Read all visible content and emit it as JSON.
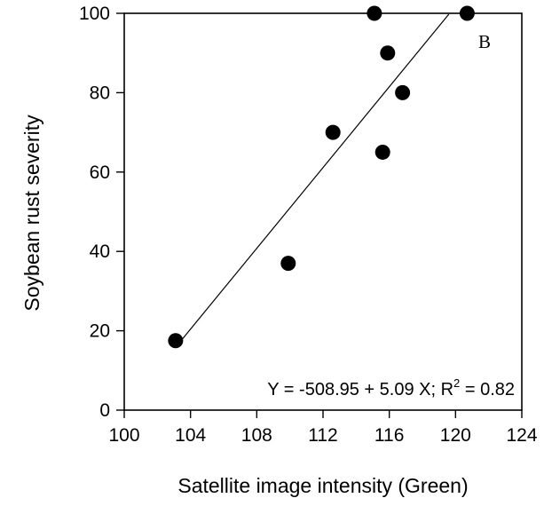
{
  "chart_data": {
    "type": "scatter",
    "panel_label": "B",
    "xlabel": "Satellite image intensity (Green)",
    "ylabel": "Soybean rust severity",
    "xlim": [
      100,
      124
    ],
    "ylim": [
      0,
      100
    ],
    "x_ticks": [
      100,
      104,
      108,
      112,
      116,
      120,
      124
    ],
    "y_ticks": [
      0,
      20,
      40,
      60,
      80,
      100
    ],
    "grid": false,
    "points": [
      {
        "x": 103.1,
        "y": 17.5
      },
      {
        "x": 109.9,
        "y": 37
      },
      {
        "x": 112.6,
        "y": 70
      },
      {
        "x": 115.1,
        "y": 100
      },
      {
        "x": 115.6,
        "y": 65
      },
      {
        "x": 115.9,
        "y": 90
      },
      {
        "x": 116.8,
        "y": 80
      },
      {
        "x": 120.7,
        "y": 100
      }
    ],
    "regression": {
      "intercept": -508.95,
      "slope": 5.09,
      "r_squared": 0.82,
      "x_range": [
        103.1,
        119.6
      ]
    },
    "equation_text": {
      "lhs": "Y = -508.95 + 5.09 X; R",
      "exponent": "2",
      "rhs": " = 0.82"
    }
  }
}
